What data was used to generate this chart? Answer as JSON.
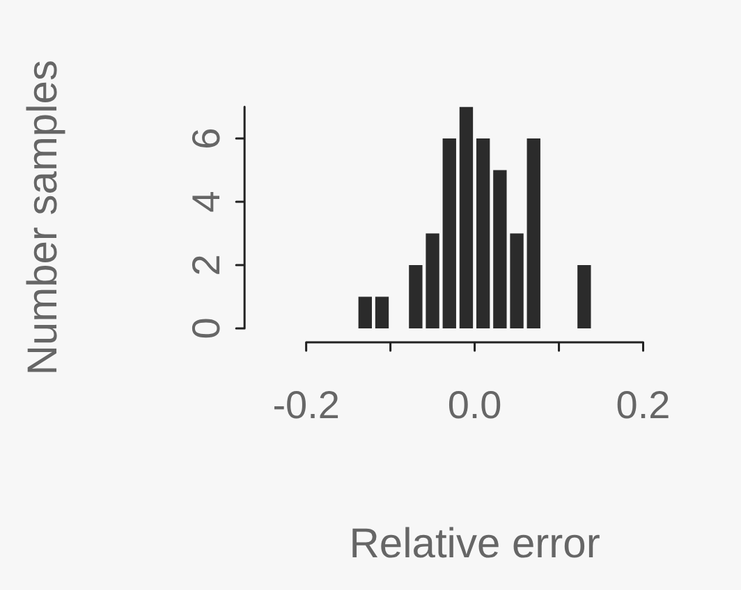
{
  "chart_data": {
    "type": "histogram",
    "xlabel": "Relative error",
    "ylabel": "Number samples",
    "bins": [
      -0.14,
      -0.12,
      -0.1,
      -0.08,
      -0.06,
      -0.04,
      -0.02,
      0,
      0.02,
      0.04,
      0.06,
      0.08,
      0.1,
      0.12,
      0.14
    ],
    "values": [
      1,
      1,
      0,
      2,
      3,
      6,
      7,
      6,
      5,
      3,
      6,
      0,
      0,
      2
    ],
    "color": "#2b2b2b",
    "xlim": [
      -0.2,
      0.2
    ],
    "xticks": [
      -0.2,
      {
        "value": -0.1,
        "label": null
      },
      {
        "value": 0,
        "label": "0.0"
      },
      {
        "value": 0.1,
        "label": null
      },
      0.2
    ],
    "ylim": [
      0,
      7
    ],
    "yticks": [
      0,
      2,
      4,
      6
    ],
    "grid": false,
    "legend": false
  }
}
